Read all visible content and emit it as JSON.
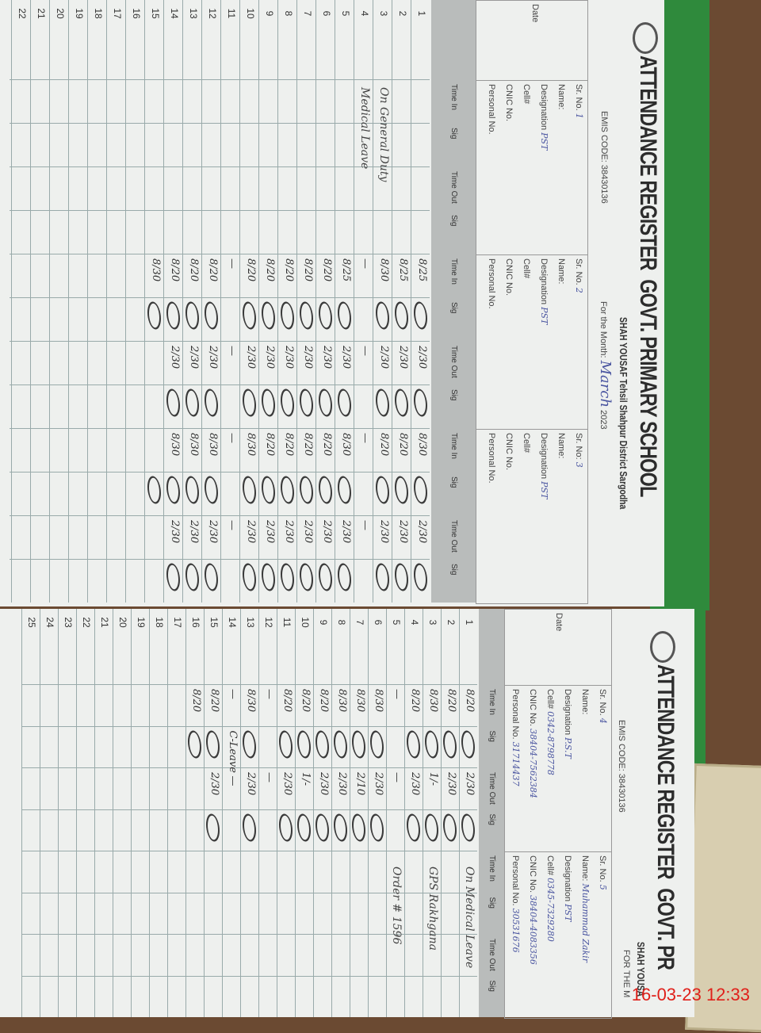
{
  "colors": {
    "cover": "#2f8a3c",
    "paper": "#eef0ee",
    "band": "#b9bcbb",
    "stamp": "#e0201a",
    "ink": "#4a55a0"
  },
  "timestamp": "16-03-23  12:33",
  "left_page": {
    "title": "ATTENDANCE REGISTER",
    "school": "GOVT. PRIMARY SCHOOL",
    "subtitle": "SHAH YOUSAF Tehsil Shahpur District Sargodha",
    "emis": "EMIS CODE: 38430136",
    "month_label": "For the Month:",
    "month": "March",
    "year": "2023",
    "date_label": "Date",
    "persons": [
      {
        "sr_label": "Sr. No.",
        "sr": "1",
        "name_label": "Name:",
        "desig_label": "Designation",
        "desig": "PST",
        "cell_label": "Cell#",
        "cnic_label": "CNIC No.",
        "pers_label": "Personal No."
      },
      {
        "sr_label": "Sr. No.",
        "sr": "2",
        "name_label": "Name:",
        "desig_label": "Designation",
        "desig": "PST",
        "cell_label": "Cell#",
        "cnic_label": "CNIC No.",
        "pers_label": "Personal No."
      },
      {
        "sr_label": "Sr. No:",
        "sr": "3",
        "name_label": "Name:",
        "desig_label": "Designation",
        "desig": "PST",
        "cell_label": "Cell#",
        "cnic_label": "CNIC No.",
        "pers_label": "Personal No."
      }
    ],
    "subheaders": [
      "Time In",
      "Sig",
      "Time Out",
      "Sig"
    ],
    "rows": [
      {
        "n": "1",
        "p": [
          [],
          [
            "8/25",
            1,
            "2/30",
            1
          ],
          [
            "8/30",
            1,
            "2/30",
            1
          ]
        ]
      },
      {
        "n": "2",
        "p": [
          [],
          [
            "8/25",
            1,
            "2/30",
            1
          ],
          [
            "8/20",
            1,
            "2/30",
            1
          ]
        ]
      },
      {
        "n": "3",
        "r": "On General Duty",
        "p": [
          [],
          [
            "8/30",
            1,
            "2/30",
            1
          ],
          [
            "8/20",
            1,
            "2/30",
            1
          ]
        ]
      },
      {
        "n": "4",
        "r": "Medical Leave",
        "p": [
          [],
          [
            "—",
            "",
            "—",
            ""
          ],
          [
            "—",
            "",
            "—",
            ""
          ]
        ]
      },
      {
        "n": "5",
        "p": [
          [],
          [
            "8/25",
            1,
            "2/30",
            1
          ],
          [
            "8/30",
            1,
            "2/30",
            1
          ]
        ]
      },
      {
        "n": "6",
        "p": [
          [],
          [
            "8/20",
            1,
            "2/30",
            1
          ],
          [
            "8/20",
            1,
            "2/30",
            1
          ]
        ]
      },
      {
        "n": "7",
        "p": [
          [],
          [
            "8/20",
            1,
            "2/30",
            1
          ],
          [
            "8/20",
            1,
            "2/30",
            1
          ]
        ]
      },
      {
        "n": "8",
        "p": [
          [],
          [
            "8/20",
            1,
            "2/30",
            1
          ],
          [
            "8/20",
            1,
            "2/30",
            1
          ]
        ]
      },
      {
        "n": "9",
        "p": [
          [],
          [
            "8/20",
            1,
            "2/30",
            1
          ],
          [
            "8/20",
            1,
            "2/30",
            1
          ]
        ]
      },
      {
        "n": "10",
        "p": [
          [],
          [
            "8/20",
            1,
            "2/30",
            1
          ],
          [
            "8/30",
            1,
            "2/30",
            1
          ]
        ]
      },
      {
        "n": "11",
        "p": [
          [],
          [
            "—",
            "",
            "—",
            ""
          ],
          [
            "—",
            "",
            "—",
            ""
          ]
        ]
      },
      {
        "n": "12",
        "p": [
          [],
          [
            "8/20",
            1,
            "2/30",
            1
          ],
          [
            "8/30",
            1,
            "2/30",
            1
          ]
        ]
      },
      {
        "n": "13",
        "p": [
          [],
          [
            "8/20",
            1,
            "2/30",
            1
          ],
          [
            "8/30",
            1,
            "2/30",
            1
          ]
        ]
      },
      {
        "n": "14",
        "p": [
          [],
          [
            "8/20",
            1,
            "2/30",
            1
          ],
          [
            "8/30",
            1,
            "2/30",
            1
          ]
        ]
      },
      {
        "n": "15",
        "p": [
          [],
          [
            "8/30",
            1,
            "",
            ""
          ],
          [
            "",
            1,
            "",
            ""
          ]
        ]
      },
      {
        "n": "16",
        "p": [
          [],
          [],
          []
        ]
      },
      {
        "n": "17",
        "p": [
          [],
          [],
          []
        ]
      },
      {
        "n": "18",
        "p": [
          [],
          [],
          []
        ]
      },
      {
        "n": "19",
        "p": [
          [],
          [],
          []
        ]
      },
      {
        "n": "20",
        "p": [
          [],
          [],
          []
        ]
      },
      {
        "n": "21",
        "p": [
          [],
          [],
          []
        ]
      },
      {
        "n": "22",
        "p": [
          [],
          [],
          []
        ]
      }
    ]
  },
  "right_page": {
    "title": "ATTENDANCE REGISTER",
    "school": "GOVT. PR",
    "subtitle": "SHAH YOUSA",
    "month_label": "FOR THE M",
    "emis": "EMIS CODE: 38430136",
    "date_label": "Date",
    "persons": [
      {
        "sr_label": "Sr. No.",
        "sr": "4",
        "name_label": "Name:",
        "desig_label": "Designation",
        "desig": "P.S.T",
        "cell_label": "Cell#",
        "cell": "0342-8798778",
        "cnic_label": "CNIC No.",
        "cnic": "38404-7562384",
        "pers_label": "Personal No.",
        "pers": "31714437"
      },
      {
        "sr_label": "Sr. No.",
        "sr": "5",
        "name_label": "Name:",
        "name": "Muhammad Zakir",
        "desig_label": "Designation",
        "desig": "PST",
        "cell_label": "Cell#",
        "cell": "0345-7329280",
        "cnic_label": "CNIC No.",
        "cnic": "38404-4083356",
        "pers_label": "Personal No.",
        "pers": "30531676"
      }
    ],
    "subheaders": [
      "Time In",
      "Sig",
      "Time Out",
      "Sig"
    ],
    "rows": [
      {
        "n": "1",
        "r": "On Medical Leave",
        "p": [
          [
            "8/20",
            1,
            "2/30",
            1
          ]
        ]
      },
      {
        "n": "2",
        "p": [
          [
            "8/20",
            1,
            "2/30",
            1
          ]
        ]
      },
      {
        "n": "3",
        "r": "GPS Rakhgana",
        "p": [
          [
            "8/30",
            1,
            "1/-",
            1
          ]
        ]
      },
      {
        "n": "4",
        "p": [
          [
            "8/20",
            1,
            "2/30",
            1
          ]
        ]
      },
      {
        "n": "5",
        "r": "Order # 1596",
        "p": [
          [
            "—",
            "",
            "—",
            ""
          ]
        ]
      },
      {
        "n": "6",
        "p": [
          [
            "8/30",
            1,
            "2/30",
            1
          ]
        ]
      },
      {
        "n": "7",
        "p": [
          [
            "8/30",
            1,
            "2/10",
            1
          ]
        ]
      },
      {
        "n": "8",
        "p": [
          [
            "8/30",
            1,
            "2/30",
            1
          ]
        ]
      },
      {
        "n": "9",
        "p": [
          [
            "8/20",
            1,
            "2/30",
            1
          ]
        ]
      },
      {
        "n": "10",
        "p": [
          [
            "8/20",
            1,
            "1/-",
            1
          ]
        ]
      },
      {
        "n": "11",
        "p": [
          [
            "8/20",
            1,
            "2/30",
            1
          ]
        ]
      },
      {
        "n": "12",
        "p": [
          [
            "—",
            "",
            "—",
            ""
          ]
        ]
      },
      {
        "n": "13",
        "p": [
          [
            "8/30",
            1,
            "2/30",
            1
          ]
        ]
      },
      {
        "n": "14",
        "p": [
          [
            "—",
            "C-Leave",
            "—",
            ""
          ]
        ]
      },
      {
        "n": "15",
        "p": [
          [
            "8/20",
            1,
            "2/30",
            1
          ]
        ]
      },
      {
        "n": "16",
        "p": [
          [
            "8/20",
            1,
            "",
            ""
          ]
        ]
      },
      {
        "n": "17",
        "p": [
          []
        ]
      },
      {
        "n": "18",
        "p": [
          []
        ]
      },
      {
        "n": "19",
        "p": [
          []
        ]
      },
      {
        "n": "20",
        "p": [
          []
        ]
      },
      {
        "n": "21",
        "p": [
          []
        ]
      },
      {
        "n": "22",
        "p": [
          []
        ]
      },
      {
        "n": "23",
        "p": [
          []
        ]
      },
      {
        "n": "24",
        "p": [
          []
        ]
      },
      {
        "n": "25",
        "p": [
          []
        ]
      }
    ]
  }
}
